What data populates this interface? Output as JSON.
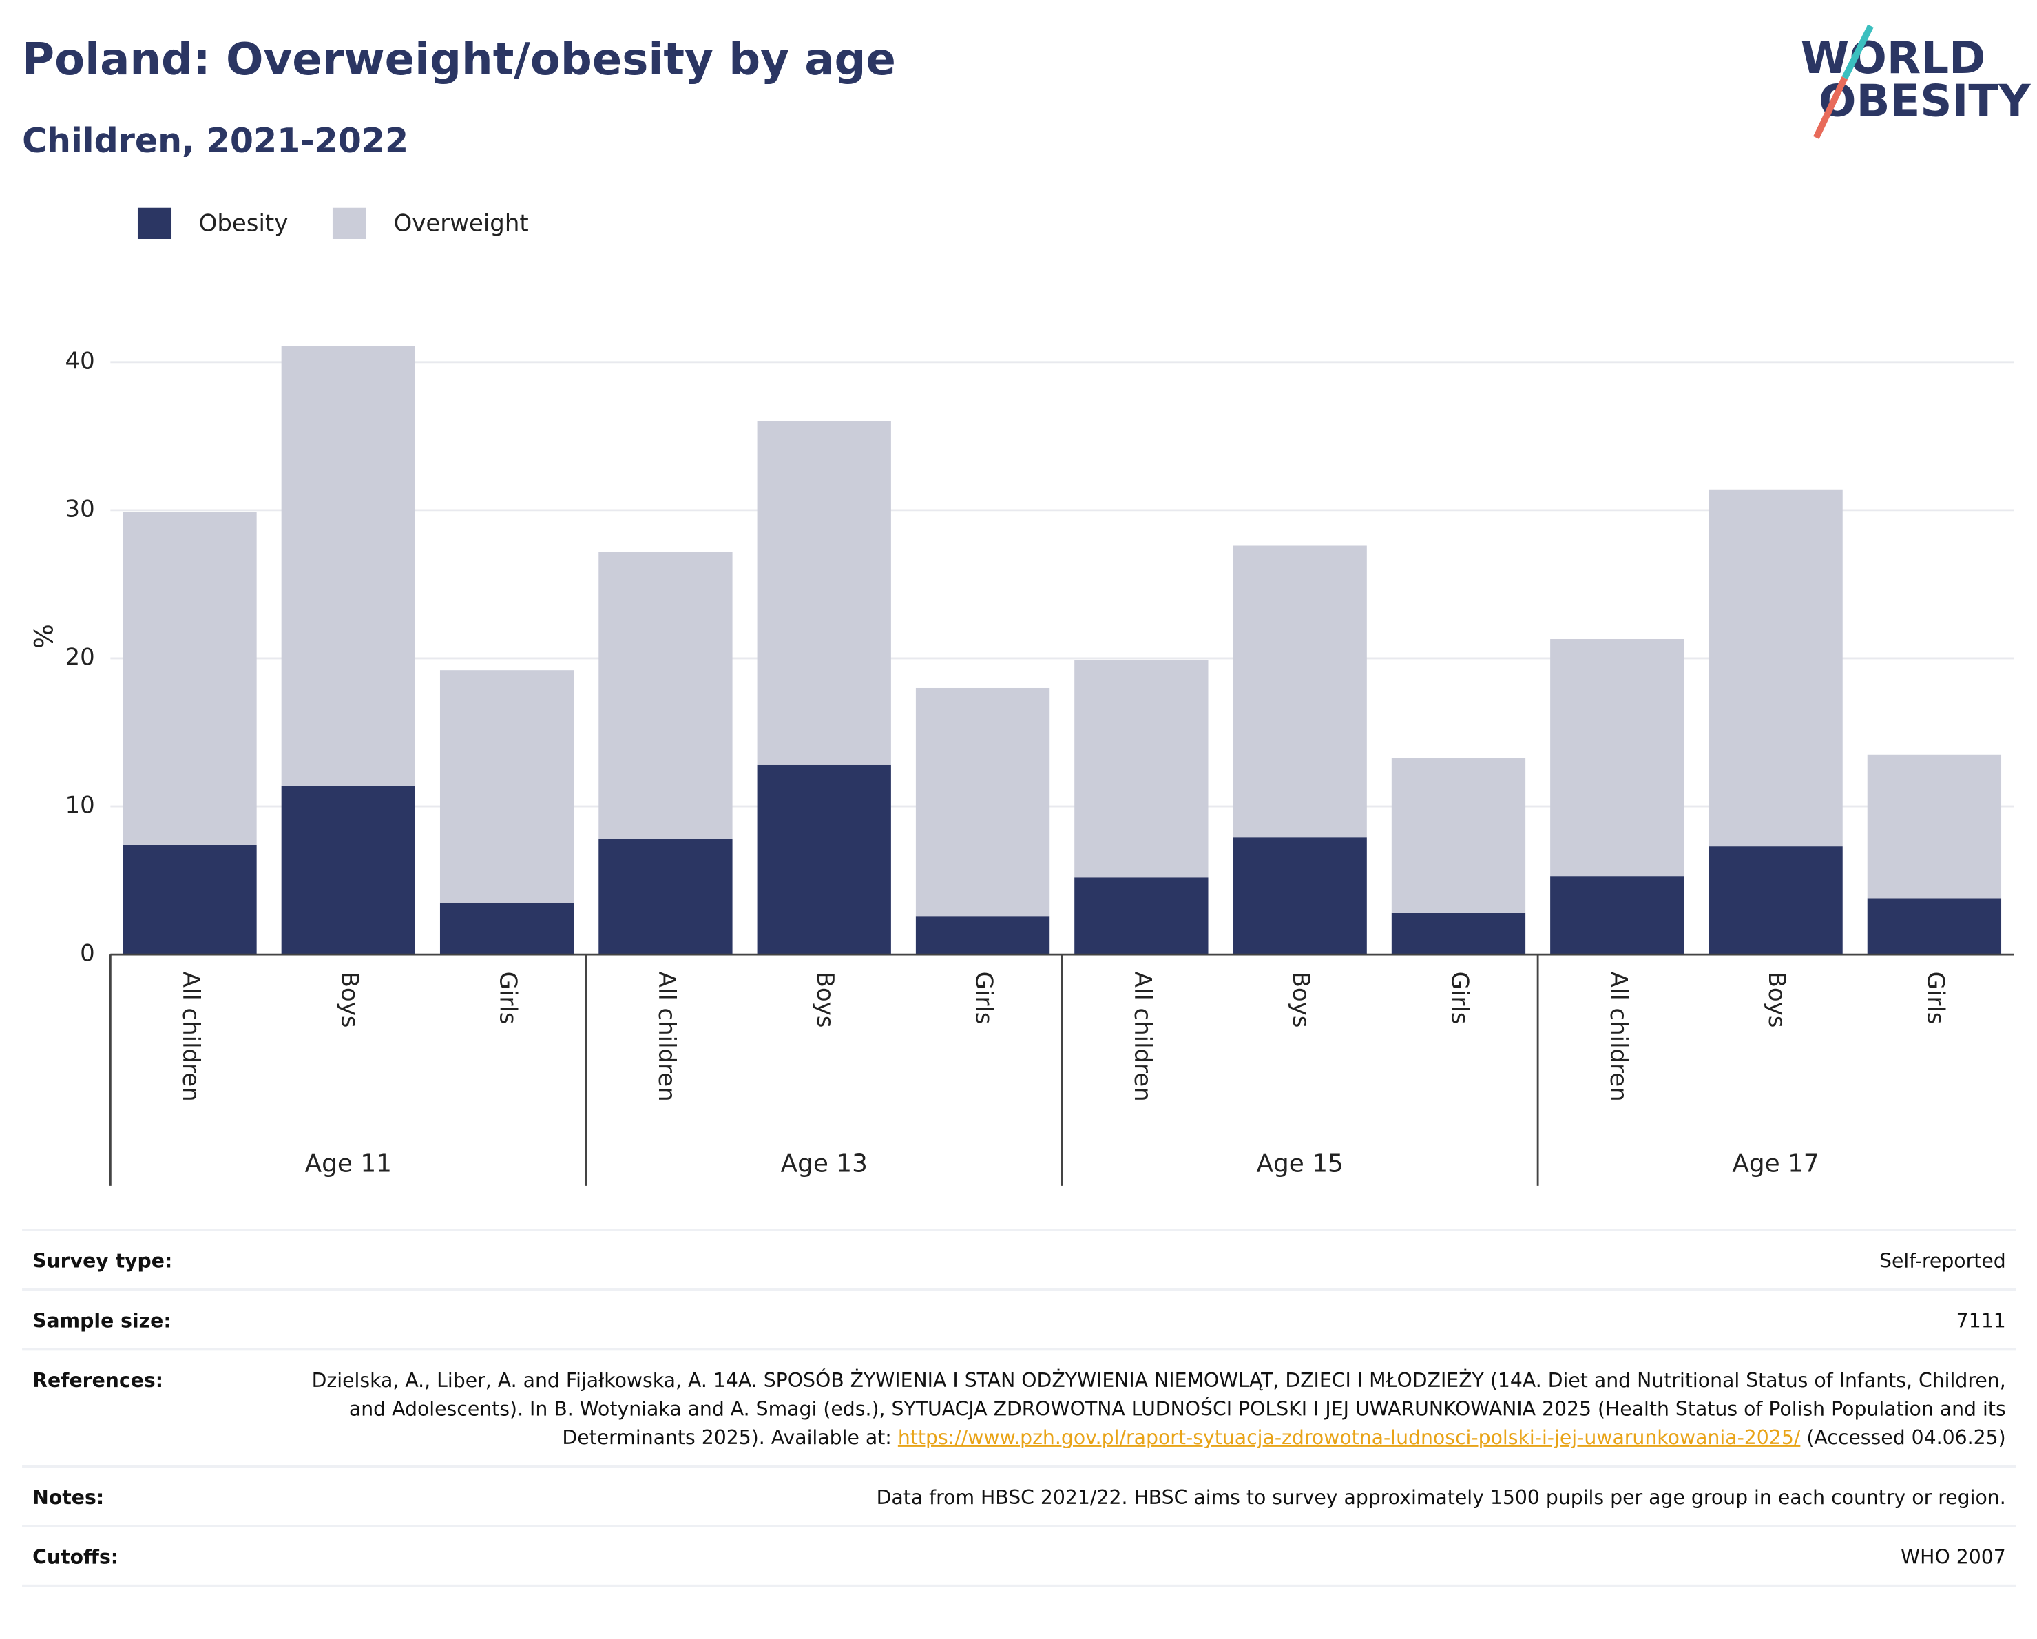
{
  "chart_data": {
    "type": "bar",
    "stacked": true,
    "title": "Poland: Overweight/obesity by age",
    "subtitle": "Children, 2021-2022",
    "logo": [
      "WORLD",
      "OBESITY"
    ],
    "y_label": "%",
    "categories": [
      "All children",
      "Boys",
      "Girls",
      "All children",
      "Boys",
      "Girls",
      "All children",
      "Boys",
      "Girls",
      "All children",
      "Boys",
      "Girls"
    ],
    "groups": [
      "Age 11",
      "Age 13",
      "Age 15",
      "Age 17"
    ],
    "series": [
      {
        "name": "Obesity",
        "color": "#2b3663",
        "values": [
          7.4,
          11.4,
          3.5,
          7.8,
          12.8,
          2.6,
          5.2,
          7.9,
          2.8,
          5.3,
          7.3,
          3.8
        ]
      },
      {
        "name": "Overweight",
        "color": "#cbcdd9",
        "values": [
          22.5,
          29.7,
          15.7,
          19.4,
          23.2,
          15.4,
          14.7,
          19.7,
          10.5,
          16.0,
          24.1,
          9.7
        ]
      }
    ],
    "ylim": [
      0,
      42
    ],
    "yticks": [
      0,
      10,
      20,
      30,
      40
    ],
    "grid": true,
    "legend": "top-left"
  },
  "table": {
    "rows": [
      [
        "Survey type:",
        "Self-reported"
      ],
      [
        "Sample size:",
        "7111"
      ],
      [
        "References:",
        "Dzielska, A., Liber, A. and Fijałkowska, A. 14A. SPOSÓB ŻYWIENIA I STAN ODŻYWIENIA NIEMOWLĄT, DZIECI I MŁODZIEŻY (14A. Diet and Nutritional Status of Infants, Children, and Adolescents). In B. Wotyniaka and A. Smagi (eds.), SYTUACJA ZDROWOTNA LUDNOŚCI POLSKI I JEJ UWARUNKOWANIA 2025 (Health Status of Polish Population and its Determinants 2025). Available at:",
        "https://www.pzh.gov.pl/raport-sytuacja-zdrowotna-ludnosci-polski-i-jej-uwarunkowania-2025/",
        "(Accessed 04.06.25)"
      ],
      [
        "Notes:",
        "Data from HBSC 2021/22. HBSC aims to survey approximately 1500 pupils per age group in each country or region."
      ],
      [
        "Cutoffs:",
        "WHO 2007"
      ]
    ]
  }
}
